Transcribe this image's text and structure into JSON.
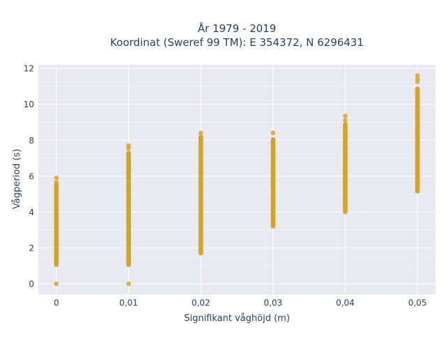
{
  "chart_data": {
    "type": "scatter",
    "title_line1": "År 1979 - 2019",
    "title_line2": "Koordinat (Sweref 99 TM): E 354372, N 6296431",
    "xlabel": "Signifikant våghöjd (m)",
    "ylabel": "Vågperiod (s)",
    "x_ticks": [
      "0",
      "0,01",
      "0,02",
      "0,03",
      "0,04",
      "0,05"
    ],
    "y_ticks": [
      "0",
      "2",
      "4",
      "6",
      "8",
      "10",
      "12"
    ],
    "xlim": [
      -0.0025,
      0.0525
    ],
    "ylim": [
      -0.6,
      12.2
    ],
    "grid": true,
    "marker_color": "#d4a325",
    "plot_background": "#e9e9f1",
    "gridline_color": "#ffffff",
    "series": [
      {
        "x": 0,
        "y_min": 1.05,
        "y_max": 5.55,
        "outliers": [
          0.0,
          5.65,
          5.9
        ]
      },
      {
        "x": 0.01,
        "y_min": 1.05,
        "y_max": 7.3,
        "outliers": [
          0.0,
          7.55,
          7.7
        ]
      },
      {
        "x": 0.02,
        "y_min": 1.7,
        "y_max": 8.2,
        "outliers": [
          8.4
        ]
      },
      {
        "x": 0.03,
        "y_min": 3.2,
        "y_max": 8.05,
        "outliers": [
          8.4
        ]
      },
      {
        "x": 0.04,
        "y_min": 4.0,
        "y_max": 8.9,
        "outliers": [
          9.1,
          9.35
        ]
      },
      {
        "x": 0.05,
        "y_min": 5.15,
        "y_max": 10.9,
        "outliers": [
          11.25,
          11.4,
          11.6
        ]
      }
    ]
  }
}
